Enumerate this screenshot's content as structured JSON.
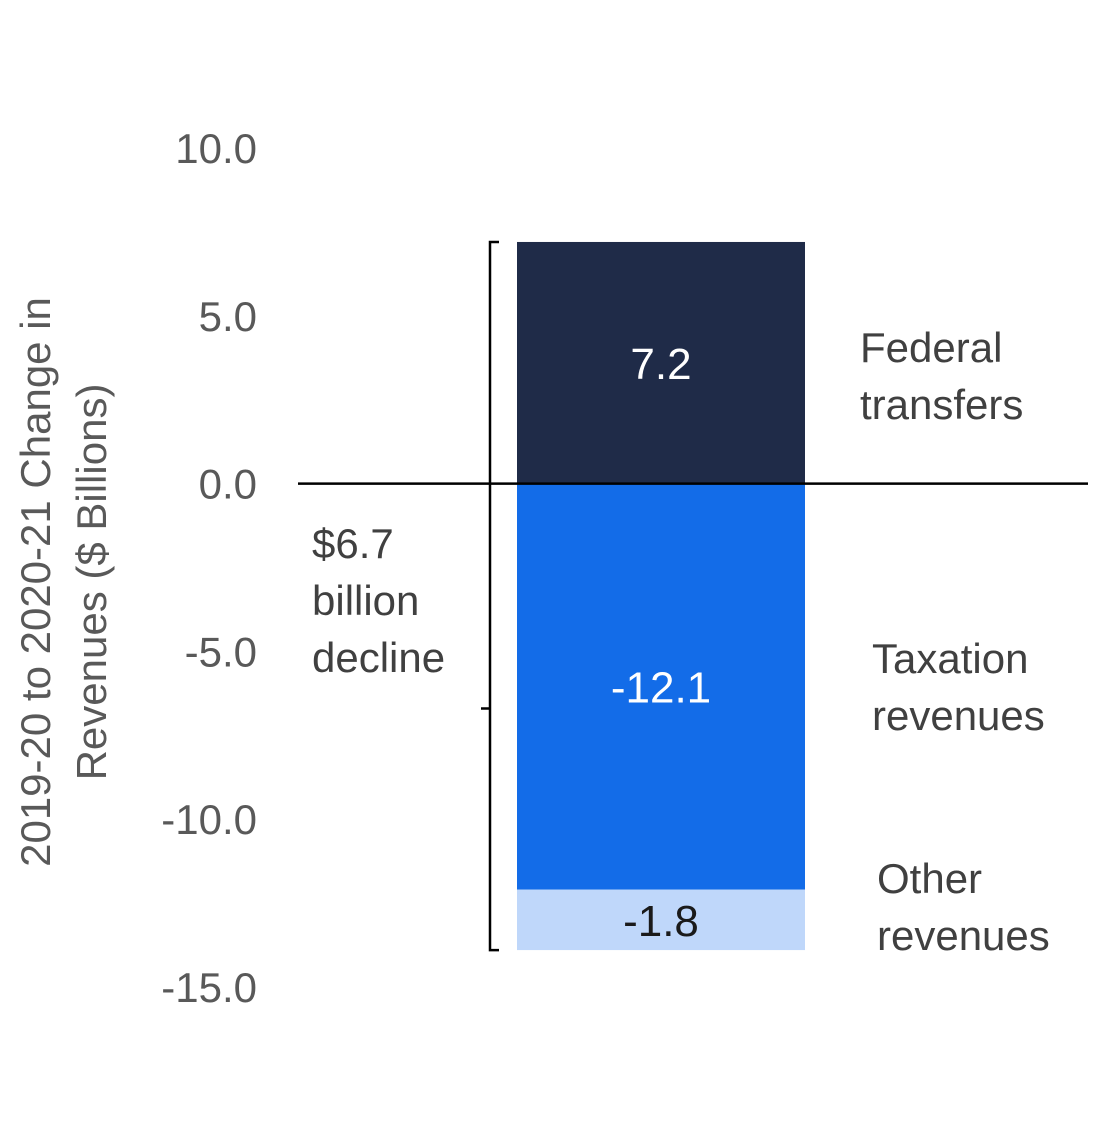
{
  "chart_data": {
    "type": "bar",
    "stacked": true,
    "ylabel_lines": [
      "2019-20 to 2020-21 Change in",
      "Revenues ($ Billions)"
    ],
    "ylim": [
      -15,
      10
    ],
    "yticks": [
      "10.0",
      "5.0",
      "0.0",
      "-5.0",
      "-10.0",
      "-15.0"
    ],
    "ytick_values": [
      10,
      5,
      0,
      -5,
      -10,
      -15
    ],
    "grid": false,
    "series": [
      {
        "name_lines": [
          "Federal",
          "transfers"
        ],
        "value": 7.2,
        "label": "7.2",
        "color": "#1F2B48",
        "label_color": "#ffffff"
      },
      {
        "name_lines": [
          "Taxation",
          "revenues"
        ],
        "value": -12.1,
        "label": "-12.1",
        "color": "#136CE8",
        "label_color": "#ffffff"
      },
      {
        "name_lines": [
          "Other",
          "revenues"
        ],
        "value": -1.8,
        "label": "-1.8",
        "color": "#BFD7FA",
        "label_color": "#1a1a1a"
      }
    ],
    "annotation": {
      "lines": [
        "$6.7",
        "billion",
        "decline"
      ],
      "net_change": -6.7
    }
  }
}
